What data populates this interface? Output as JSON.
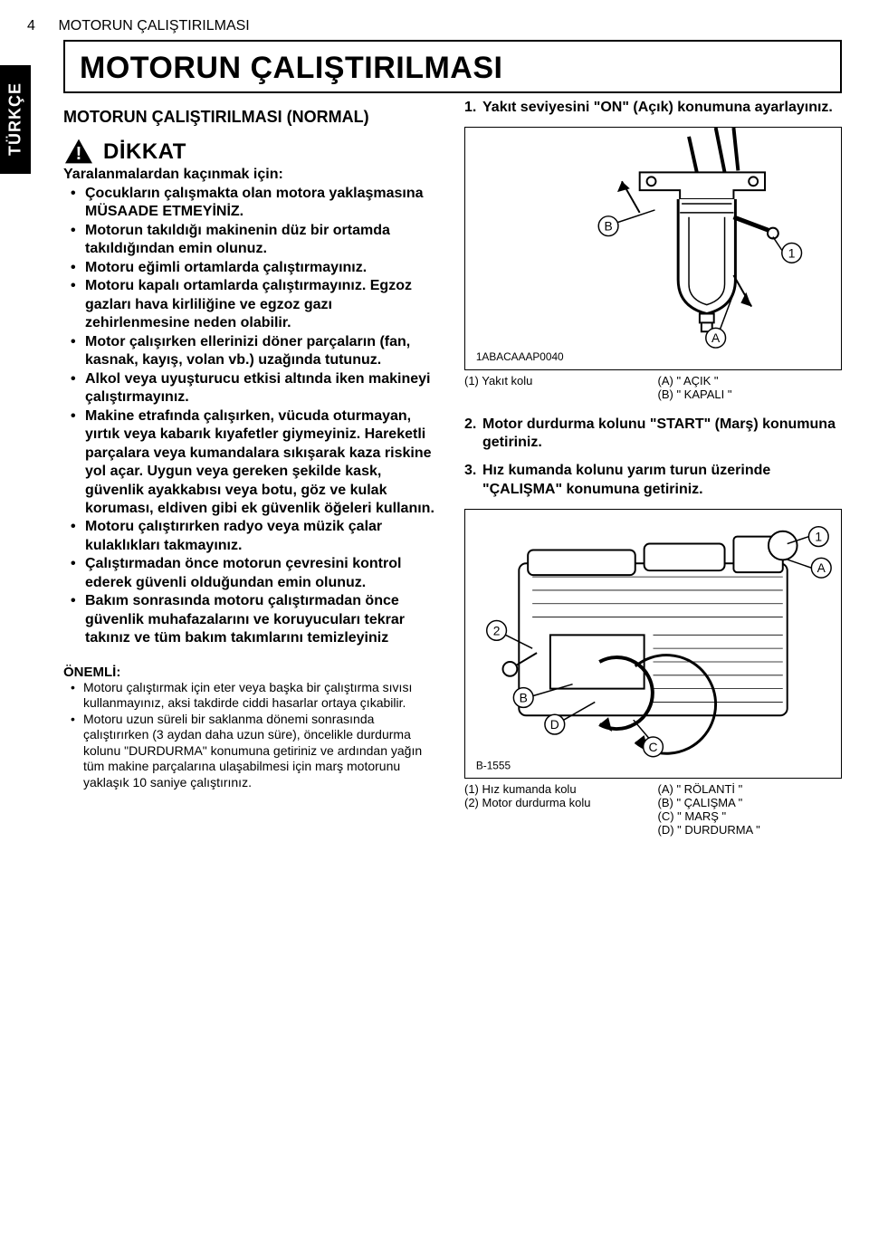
{
  "header": {
    "page_number": "4",
    "running_title": "MOTORUN ÇALIŞTIRILMASI"
  },
  "lang_tab": "TÜRKÇE",
  "main_title": "MOTORUN ÇALIŞTIRILMASI",
  "section_normal": "MOTORUN ÇALIŞTIRILMASI (NORMAL)",
  "caution_word": "DİKKAT",
  "caution_intro": "Yaralanmalardan kaçınmak için:",
  "caution_bullets": [
    "Çocukların çalışmakta olan motora yaklaşmasına MÜSAADE ETMEYİNİZ.",
    "Motorun takıldığı makinenin düz bir ortamda takıldığından emin olunuz.",
    "Motoru eğimli ortamlarda çalıştırmayınız.",
    "Motoru kapalı ortamlarda çalıştırmayınız. Egzoz gazları hava kirliliğine ve egzoz gazı zehirlenmesine neden olabilir.",
    "Motor çalışırken ellerinizi döner parçaların (fan, kasnak, kayış, volan vb.) uzağında tutunuz.",
    "Alkol veya uyuşturucu etkisi altında iken makineyi çalıştırmayınız.",
    "Makine etrafında çalışırken, vücuda oturmayan, yırtık veya kabarık kıyafetler giymeyiniz. Hareketli parçalara veya kumandalara sıkışarak kaza riskine yol açar. Uygun veya gereken şekilde kask, güvenlik ayakkabısı veya botu, göz ve kulak koruması, eldiven gibi ek güvenlik öğeleri kullanın.",
    "Motoru çalıştırırken radyo veya müzik çalar kulaklıkları takmayınız.",
    "Çalıştırmadan önce motorun çevresini kontrol ederek güvenli olduğundan emin olunuz.",
    "Bakım sonrasında motoru çalıştırmadan önce güvenlik muhafazalarını ve koruyucuları tekrar takınız ve tüm bakım takımlarını temizleyiniz"
  ],
  "onemli_head": "ÖNEMLİ:",
  "onemli_bullets": [
    "Motoru çalıştırmak için eter veya başka bir çalıştırma sıvısı kullanmayınız, aksi takdirde ciddi hasarlar ortaya çıkabilir.",
    "Motoru uzun süreli bir saklanma dönemi sonrasında çalıştırırken (3 aydan daha uzun süre), öncelikle durdurma kolunu \"DURDURMA\" konumuna getiriniz ve ardından yağın tüm makine parçalarına ulaşabilmesi için marş motorunu yaklaşık 10 saniye çalıştırınız."
  ],
  "step1": "Yakıt seviyesini \"ON\" (Açık) konumuna ayarlayınız.",
  "fig1": {
    "code": "1ABACAAAP0040",
    "labelA": "A",
    "labelB": "B",
    "label1": "1"
  },
  "legend1_left": [
    "(1) Yakıt kolu"
  ],
  "legend1_right": [
    "(A) \" AÇIK \"",
    "(B) \" KAPALI \""
  ],
  "step2": "Motor durdurma kolunu \"START\" (Marş) konumuna getiriniz.",
  "step3": "Hız kumanda kolunu yarım turun üzerinde \"ÇALIŞMA\" konumuna getiriniz.",
  "fig2": {
    "code": "B-1555",
    "label1": "1",
    "label2": "2",
    "labelA": "A",
    "labelB": "B",
    "labelC": "C",
    "labelD": "D"
  },
  "legend2_left": [
    "(1) Hız kumanda kolu",
    "(2) Motor durdurma kolu"
  ],
  "legend2_right": [
    "(A) \" RÖLANTİ \"",
    "(B) \" ÇALIŞMA \"",
    "(C) \" MARŞ \"",
    "(D) \" DURDURMA \""
  ]
}
